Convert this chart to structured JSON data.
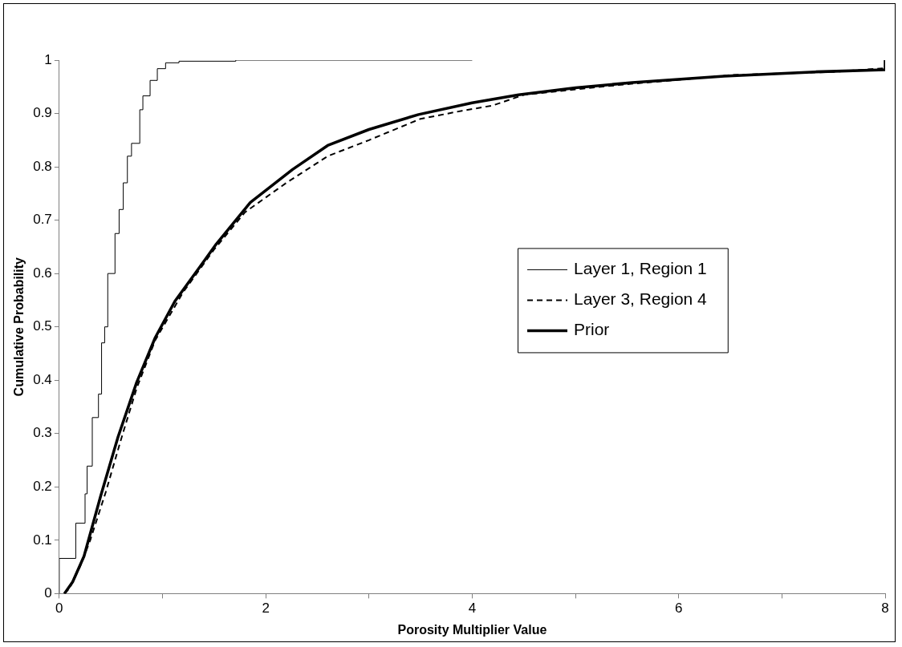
{
  "chart_data": {
    "type": "line",
    "xlabel": "Porosity Multiplier Value",
    "ylabel": "Cumulative Probability",
    "xlim": [
      0,
      8
    ],
    "ylim": [
      0,
      1
    ],
    "xticks": [
      0,
      {
        "value": 1,
        "label": null
      },
      2,
      {
        "value": 3,
        "label": null
      },
      4,
      {
        "value": 5,
        "label": null
      },
      6,
      {
        "value": 7,
        "label": null
      },
      8
    ],
    "yticks": [
      0,
      0.1,
      0.2,
      0.3,
      0.4,
      0.5,
      0.6,
      0.7,
      0.8,
      0.9,
      1
    ],
    "grid": false,
    "legend": "right",
    "marker": "none",
    "series": [
      {
        "name": "Layer 1, Region 1",
        "type": "step",
        "color": "#000000",
        "line_style": "solid",
        "x": [
          0,
          0.16,
          0.25,
          0.27,
          0.32,
          0.38,
          0.41,
          0.44,
          0.47,
          0.54,
          0.58,
          0.62,
          0.66,
          0.7,
          0.78,
          0.81,
          0.88,
          0.95,
          1.03,
          1.16,
          1.71,
          4.0
        ],
        "values": [
          0,
          0.066,
          0.132,
          0.187,
          0.239,
          0.33,
          0.374,
          0.47,
          0.5,
          0.6,
          0.675,
          0.72,
          0.77,
          0.82,
          0.844,
          0.907,
          0.933,
          0.962,
          0.984,
          0.995,
          0.998,
          1.0
        ]
      },
      {
        "name": "Layer 3, Region 4",
        "color": "#000000",
        "line_style": "dashed",
        "x": [
          0.05,
          0.1,
          0.2,
          0.3,
          0.45,
          0.6,
          0.75,
          0.93,
          1.2,
          1.5,
          1.8,
          2.2,
          2.6,
          3.0,
          3.5,
          3.9,
          4.2,
          4.5,
          5.0,
          5.5,
          6.0,
          6.5,
          7.0,
          7.5,
          8.0
        ],
        "values": [
          0,
          0.01,
          0.05,
          0.1,
          0.19,
          0.29,
          0.385,
          0.475,
          0.565,
          0.645,
          0.715,
          0.77,
          0.82,
          0.85,
          0.89,
          0.905,
          0.915,
          0.935,
          0.945,
          0.955,
          0.963,
          0.972,
          0.975,
          0.978,
          0.985
        ]
      },
      {
        "name": "Prior",
        "color": "#000000",
        "line_style": "solid",
        "x": [
          0.05,
          0.13,
          0.24,
          0.4,
          0.57,
          0.75,
          0.93,
          1.12,
          1.36,
          1.52,
          1.85,
          2.26,
          2.6,
          3.0,
          3.48,
          4.0,
          4.45,
          5.0,
          5.55,
          6.44,
          7.32,
          8.0,
          8.0
        ],
        "values": [
          0,
          0.022,
          0.07,
          0.182,
          0.294,
          0.396,
          0.48,
          0.548,
          0.612,
          0.655,
          0.733,
          0.795,
          0.84,
          0.87,
          0.898,
          0.92,
          0.935,
          0.948,
          0.958,
          0.97,
          0.978,
          0.982,
          1.0
        ]
      }
    ]
  }
}
